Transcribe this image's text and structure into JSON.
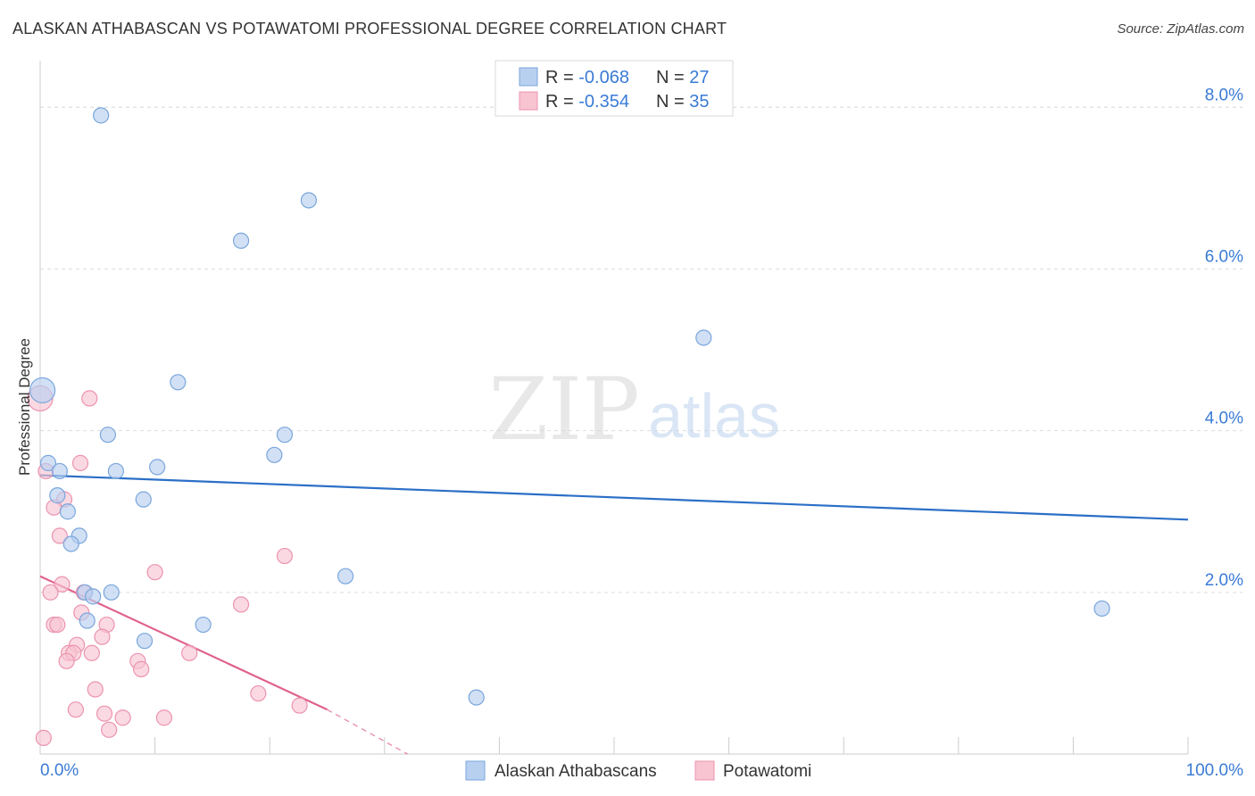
{
  "title": "ALASKAN ATHABASCAN VS POTAWATOMI PROFESSIONAL DEGREE CORRELATION CHART",
  "source": "Source: ZipAtlas.com",
  "watermark": {
    "zip": "ZIP",
    "atlas": "atlas"
  },
  "colors": {
    "blue_fill": "#b8d0f0",
    "blue_stroke": "#7aa6dc",
    "blue_line": "#2b6fc7",
    "pink_fill": "#f8c4d2",
    "pink_stroke": "#ec93ae",
    "pink_line": "#e0628e",
    "axis_text": "#3a7bd5",
    "grid": "#dddddd"
  },
  "legend_top": [
    {
      "r_label": "R = ",
      "r_value": "-0.068",
      "n_label": "N = ",
      "n_value": "27",
      "color": "blue"
    },
    {
      "r_label": "R = ",
      "r_value": "-0.354",
      "n_label": "N = ",
      "n_value": "35",
      "color": "pink"
    }
  ],
  "legend_bottom": [
    {
      "label": "Alaskan Athabascans",
      "color": "blue"
    },
    {
      "label": "Potawatomi",
      "color": "pink"
    }
  ],
  "chart_data": {
    "type": "scatter",
    "title": "ALASKAN ATHABASCAN VS POTAWATOMI PROFESSIONAL DEGREE CORRELATION CHART",
    "ylabel": "Professional Degree",
    "xlabel": "",
    "xlim": [
      0,
      100
    ],
    "ylim": [
      0,
      8.5
    ],
    "x_tick_labels": [
      {
        "value": 0,
        "label": "0.0%"
      },
      {
        "value": 100,
        "label": "100.0%"
      }
    ],
    "y_tick_labels": [
      {
        "value": 2,
        "label": "2.0%"
      },
      {
        "value": 4,
        "label": "4.0%"
      },
      {
        "value": 6,
        "label": "6.0%"
      },
      {
        "value": 8,
        "label": "8.0%"
      }
    ],
    "series": [
      {
        "name": "Alaskan Athabascans",
        "color": "blue",
        "R": -0.068,
        "N": 27,
        "trend": {
          "x": [
            0,
            100
          ],
          "y": [
            3.45,
            2.9
          ]
        },
        "points": [
          {
            "x": 0.2,
            "y": 4.5,
            "size": "large"
          },
          {
            "x": 5.3,
            "y": 7.9
          },
          {
            "x": 23.4,
            "y": 6.85
          },
          {
            "x": 17.5,
            "y": 6.35
          },
          {
            "x": 57.8,
            "y": 5.15
          },
          {
            "x": 12.0,
            "y": 4.6
          },
          {
            "x": 5.9,
            "y": 3.95
          },
          {
            "x": 21.3,
            "y": 3.95
          },
          {
            "x": 20.4,
            "y": 3.7
          },
          {
            "x": 0.7,
            "y": 3.6
          },
          {
            "x": 1.7,
            "y": 3.5
          },
          {
            "x": 6.6,
            "y": 3.5
          },
          {
            "x": 10.2,
            "y": 3.55
          },
          {
            "x": 1.5,
            "y": 3.2
          },
          {
            "x": 9.0,
            "y": 3.15
          },
          {
            "x": 2.4,
            "y": 3.0
          },
          {
            "x": 3.4,
            "y": 2.7
          },
          {
            "x": 2.7,
            "y": 2.6
          },
          {
            "x": 26.6,
            "y": 2.2
          },
          {
            "x": 3.9,
            "y": 2.0
          },
          {
            "x": 6.2,
            "y": 2.0
          },
          {
            "x": 4.6,
            "y": 1.95
          },
          {
            "x": 4.1,
            "y": 1.65
          },
          {
            "x": 14.2,
            "y": 1.6
          },
          {
            "x": 92.5,
            "y": 1.8
          },
          {
            "x": 9.1,
            "y": 1.4
          },
          {
            "x": 38.0,
            "y": 0.7
          }
        ]
      },
      {
        "name": "Potawatomi",
        "color": "pink",
        "R": -0.354,
        "N": 35,
        "trend": {
          "x": [
            0,
            25
          ],
          "y": [
            2.2,
            0.55
          ]
        },
        "trend_dashed": {
          "x": [
            25,
            32
          ],
          "y": [
            0.55,
            0.0
          ]
        },
        "points": [
          {
            "x": 0.0,
            "y": 4.4,
            "size": "large"
          },
          {
            "x": 4.3,
            "y": 4.4
          },
          {
            "x": 0.5,
            "y": 3.5
          },
          {
            "x": 3.5,
            "y": 3.6
          },
          {
            "x": 2.1,
            "y": 3.15
          },
          {
            "x": 1.2,
            "y": 3.05
          },
          {
            "x": 1.7,
            "y": 2.7
          },
          {
            "x": 21.3,
            "y": 2.45
          },
          {
            "x": 10.0,
            "y": 2.25
          },
          {
            "x": 1.9,
            "y": 2.1
          },
          {
            "x": 0.9,
            "y": 2.0
          },
          {
            "x": 3.8,
            "y": 2.0
          },
          {
            "x": 17.5,
            "y": 1.85
          },
          {
            "x": 3.6,
            "y": 1.75
          },
          {
            "x": 1.2,
            "y": 1.6
          },
          {
            "x": 1.5,
            "y": 1.6
          },
          {
            "x": 5.8,
            "y": 1.6
          },
          {
            "x": 5.4,
            "y": 1.45
          },
          {
            "x": 3.2,
            "y": 1.35
          },
          {
            "x": 2.5,
            "y": 1.25
          },
          {
            "x": 2.9,
            "y": 1.25
          },
          {
            "x": 4.5,
            "y": 1.25
          },
          {
            "x": 13.0,
            "y": 1.25
          },
          {
            "x": 2.3,
            "y": 1.15
          },
          {
            "x": 8.5,
            "y": 1.15
          },
          {
            "x": 8.8,
            "y": 1.05
          },
          {
            "x": 4.8,
            "y": 0.8
          },
          {
            "x": 19.0,
            "y": 0.75
          },
          {
            "x": 22.6,
            "y": 0.6
          },
          {
            "x": 3.1,
            "y": 0.55
          },
          {
            "x": 5.6,
            "y": 0.5
          },
          {
            "x": 7.2,
            "y": 0.45
          },
          {
            "x": 10.8,
            "y": 0.45
          },
          {
            "x": 6.0,
            "y": 0.3
          },
          {
            "x": 0.3,
            "y": 0.2
          }
        ]
      }
    ]
  }
}
